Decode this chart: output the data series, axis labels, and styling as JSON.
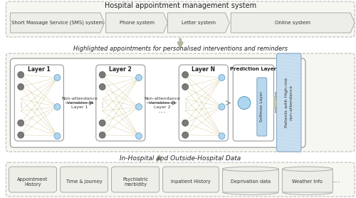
{
  "top_title": "Hospital appointment management system",
  "top_boxes": [
    "Short Massage Service (SMS) system",
    "Phone system",
    "Letter system",
    "Online system"
  ],
  "middle_title": "Highlighted appointments for personalised interventions and reminders",
  "layers": [
    "Layer 1",
    "Layer 2",
    "Layer N"
  ],
  "layer_labels": [
    "Non-attendance\nVariables at\nLayer 1",
    "Non-attendance\nVariables at\nLayer 2"
  ],
  "pred_label": "Prediction Layer",
  "softmax_label": "Softmax Layer",
  "output_label": "Patients with High-risk\nnon-attendance",
  "bottom_title": "In-Hospital and Outside-Hospital Data",
  "bottom_boxes": [
    "Appointment\nHistory",
    "Time & Journey",
    "Psychiatric\nmorbidity",
    "Inpatient History",
    "Deprivation data",
    "Weather Info"
  ],
  "outer_bg": "#ffffff",
  "section_fill": "#f7f7f2",
  "section_edge": "#bbbbbb",
  "box_fill": "#eeeee8",
  "box_edge": "#aaaaaa",
  "node_dark": "#7a7a7a",
  "node_mid": "#aaaaaa",
  "node_light": "#aed6f1",
  "conn_color": "#c8b878",
  "softmax_fill": "#b8d8ee",
  "output_fill": "#c8dff0",
  "arrow_fill": "#c0c8b0"
}
